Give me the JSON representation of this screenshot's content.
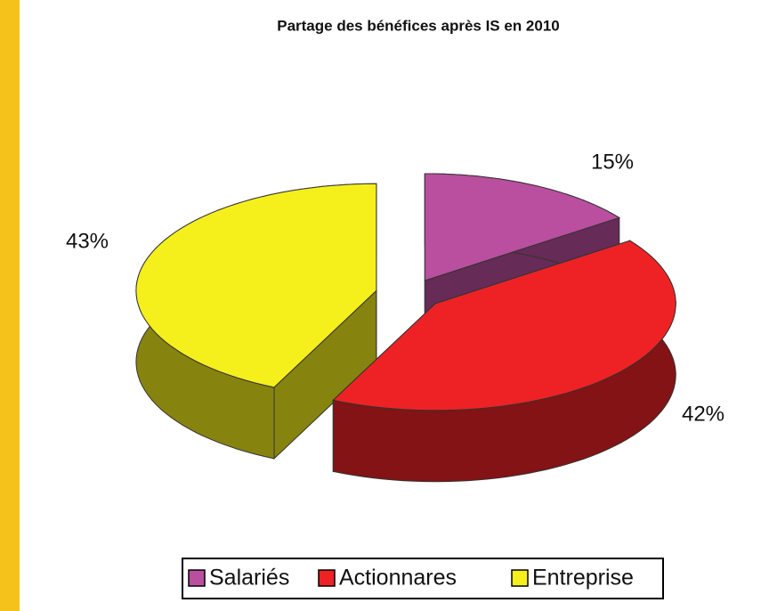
{
  "chart_data": {
    "type": "pie",
    "title": "Partage des bénéfices après IS en 2010",
    "categories": [
      "Salariés",
      "Actionnares",
      "Entreprise"
    ],
    "values": [
      15,
      42,
      43
    ],
    "value_labels": [
      "15%",
      "42%",
      "43%"
    ],
    "colors": [
      "#b94f9e",
      "#ee2224",
      "#f5ef1c"
    ],
    "legend": "bottom"
  }
}
